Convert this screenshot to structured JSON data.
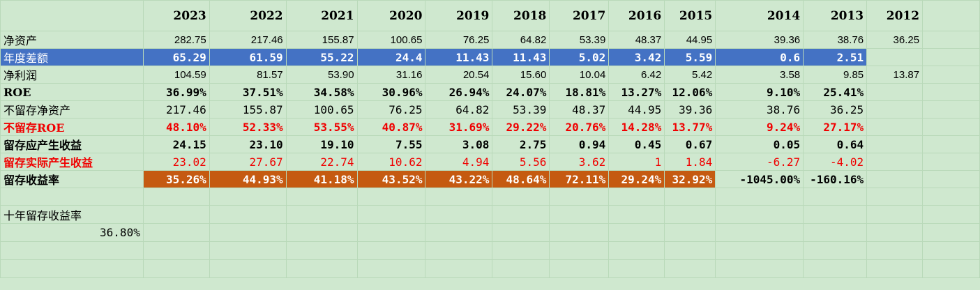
{
  "years": [
    "2023",
    "2022",
    "2021",
    "2020",
    "2019",
    "2018",
    "2017",
    "2016",
    "2015",
    "2014",
    "2013",
    "2012"
  ],
  "rows": {
    "net_assets": {
      "label": "净资产",
      "values": [
        "282.75",
        "217.46",
        "155.87",
        "100.65",
        "76.25",
        "64.82",
        "53.39",
        "48.37",
        "44.95",
        "39.36",
        "38.76",
        "36.25"
      ]
    },
    "annual_diff": {
      "label": "年度差额",
      "values": [
        "65.29",
        "61.59",
        "55.22",
        "24.4",
        "11.43",
        "11.43",
        "5.02",
        "3.42",
        "5.59",
        "0.6",
        "2.51",
        ""
      ]
    },
    "net_profit": {
      "label": "净利润",
      "values": [
        "104.59",
        "81.57",
        "53.90",
        "31.16",
        "20.54",
        "15.60",
        "10.04",
        "6.42",
        "5.42",
        "3.58",
        "9.85",
        "13.87"
      ]
    },
    "roe": {
      "label": "ROE",
      "values": [
        "36.99%",
        "37.51%",
        "34.58%",
        "30.96%",
        "26.94%",
        "24.07%",
        "18.81%",
        "13.27%",
        "12.06%",
        "9.10%",
        "25.41%",
        ""
      ]
    },
    "unretained_assets": {
      "label": "不留存净资产",
      "values": [
        "217.46",
        "155.87",
        "100.65",
        "76.25",
        "64.82",
        "53.39",
        "48.37",
        "44.95",
        "39.36",
        "38.76",
        "36.25",
        ""
      ]
    },
    "unretained_roe": {
      "label": "不留存ROE",
      "values": [
        "48.10%",
        "52.33%",
        "53.55%",
        "40.87%",
        "31.69%",
        "29.22%",
        "20.76%",
        "14.28%",
        "13.77%",
        "9.24%",
        "27.17%",
        ""
      ]
    },
    "expected_gain": {
      "label": "留存应产生收益",
      "values": [
        "24.15",
        "23.10",
        "19.10",
        "7.55",
        "3.08",
        "2.75",
        "0.94",
        "0.45",
        "0.67",
        "0.05",
        "0.64",
        ""
      ]
    },
    "actual_gain": {
      "label": "留存实际产生收益",
      "values": [
        "23.02",
        "27.67",
        "22.74",
        "10.62",
        "4.94",
        "5.56",
        "3.62",
        "1",
        "1.84",
        "-6.27",
        "-4.02",
        ""
      ]
    },
    "retained_rate": {
      "label": "留存收益率",
      "values": [
        "35.26%",
        "44.93%",
        "41.18%",
        "43.52%",
        "43.22%",
        "48.64%",
        "72.11%",
        "29.24%",
        "32.92%",
        "-1045.00%",
        "-160.16%",
        ""
      ]
    }
  },
  "summary": {
    "label": "十年留存收益率",
    "value": "36.80%"
  },
  "colors": {
    "background": "#cfe8cf",
    "highlight_blue": "#4472c4",
    "highlight_orange": "#c55a11",
    "red_text": "#f00000"
  }
}
